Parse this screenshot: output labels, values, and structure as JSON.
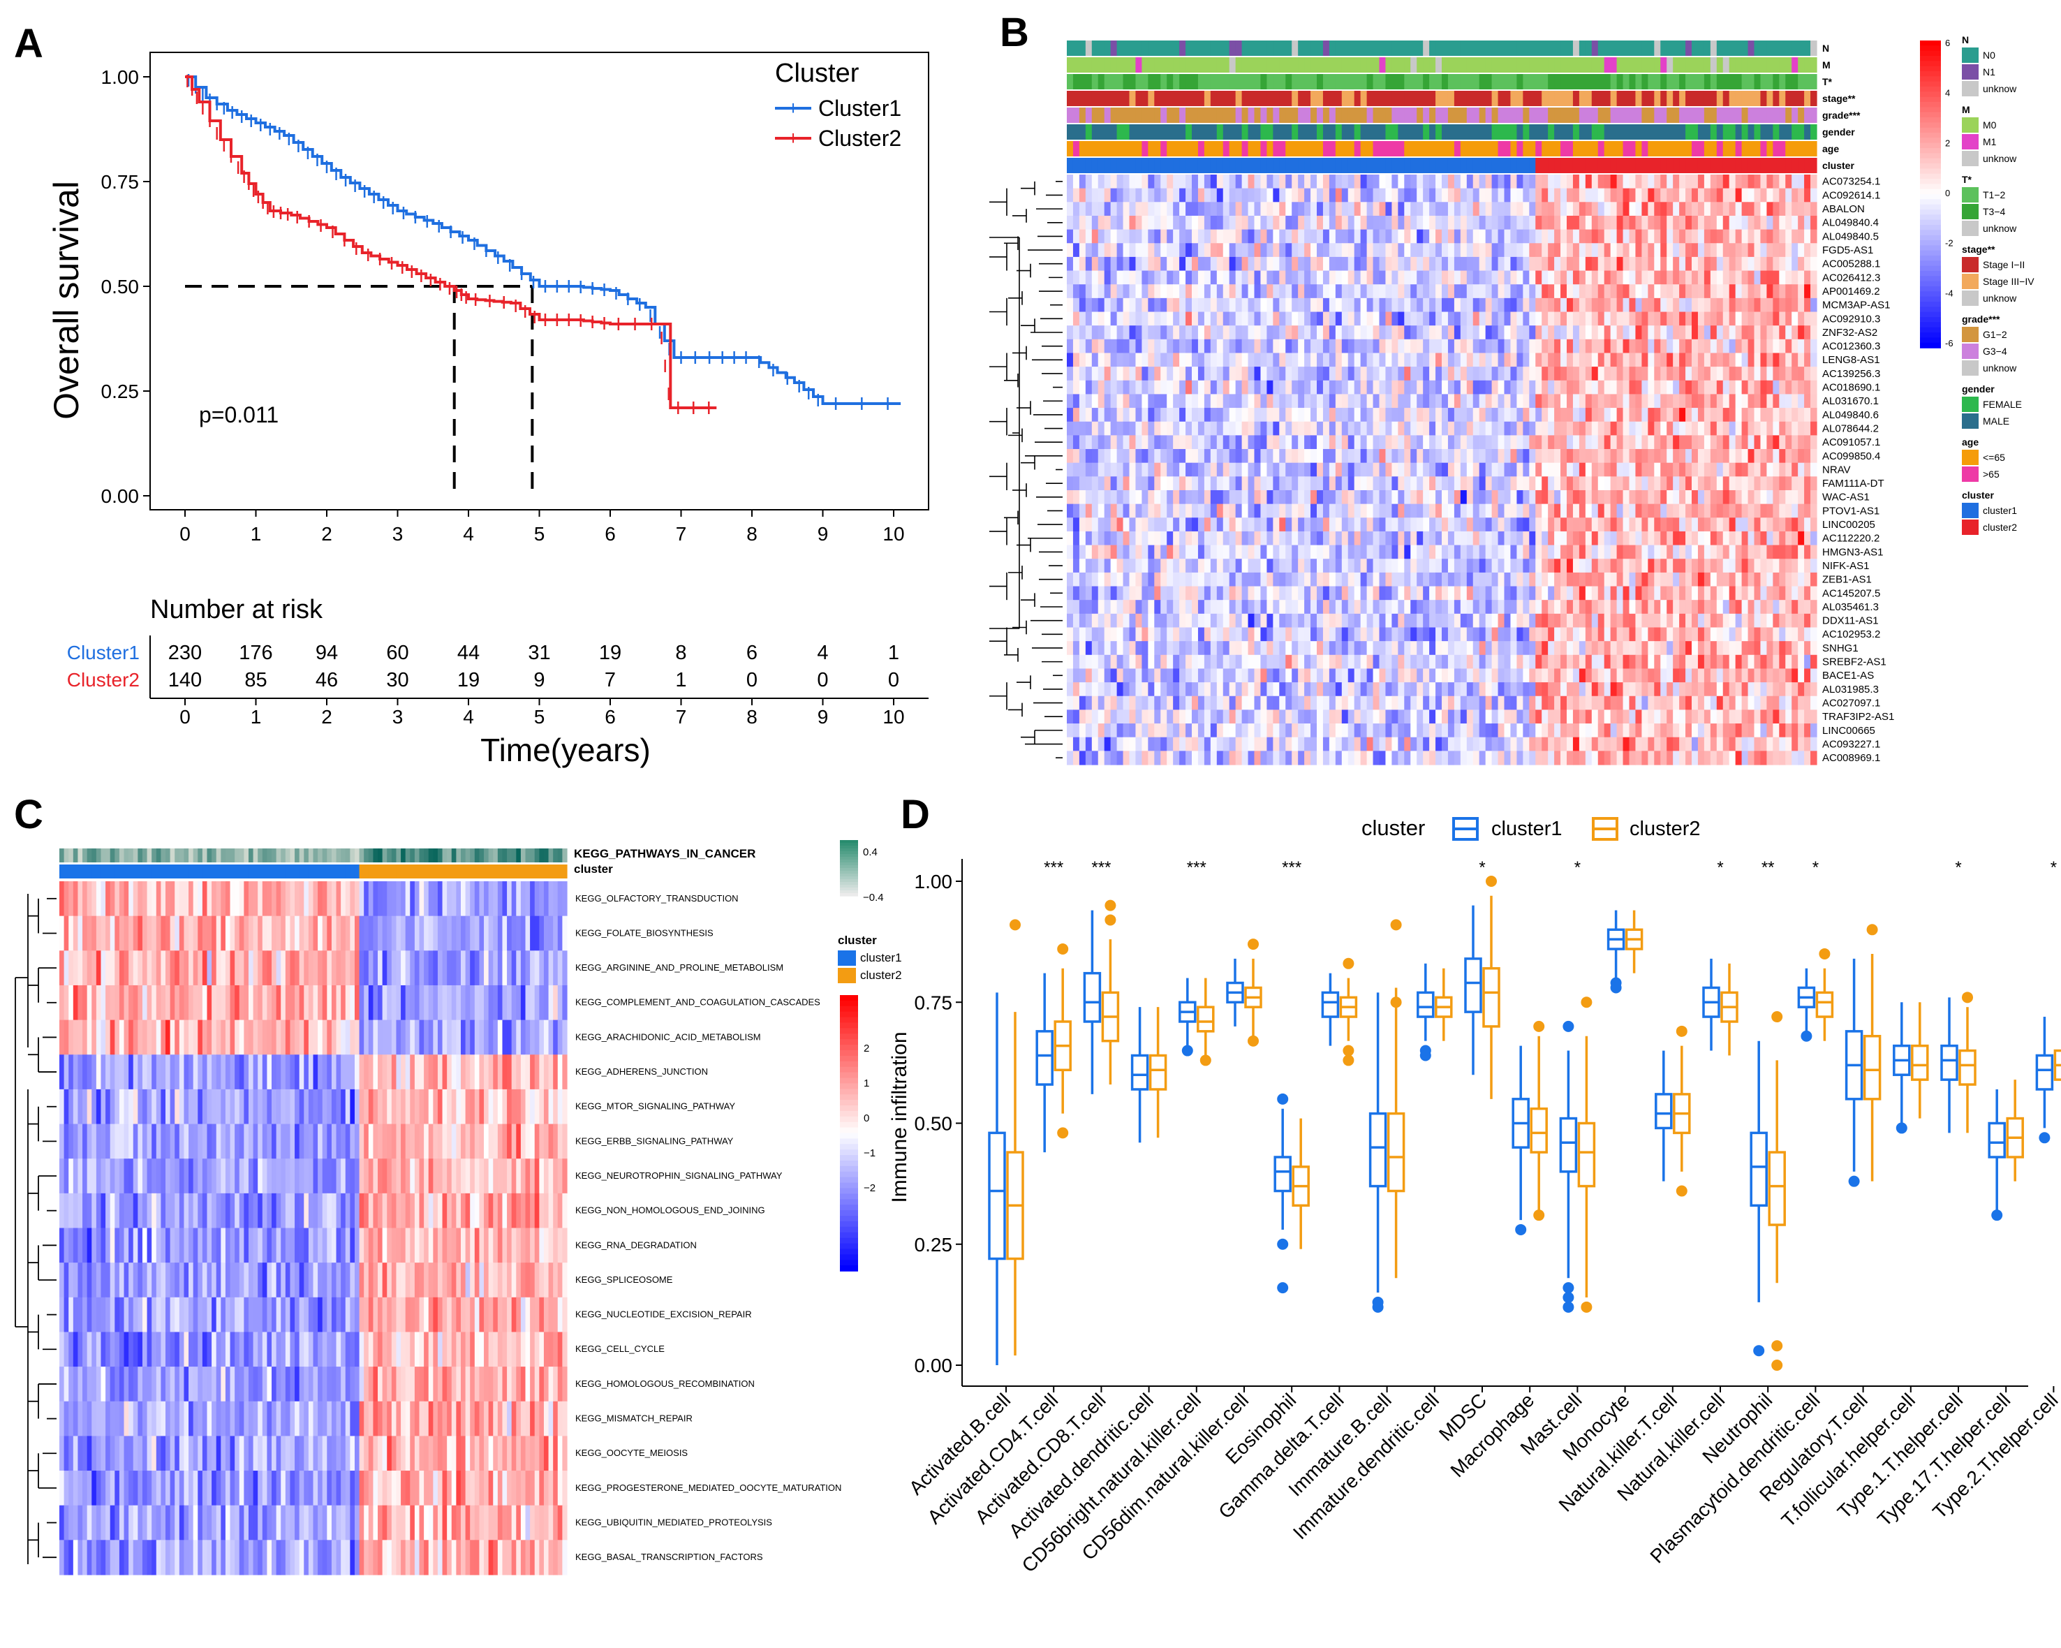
{
  "panel_labels": [
    "A",
    "B",
    "C",
    "D"
  ],
  "colors": {
    "cluster1": "#1f6fe0",
    "cluster2": "#e8232a",
    "cluster1_box": "#1a73e8",
    "cluster2_box": "#f39c12",
    "heat_low": "#0000e0",
    "heat_mid": "#ffffff",
    "heat_high": "#e00000"
  },
  "chart_data": [
    {
      "panel": "A",
      "type": "line",
      "subtype": "kaplan-meier",
      "title": "",
      "legend_title": "Cluster",
      "legend_position": "top-right",
      "xlabel": "Time(years)",
      "ylabel": "Overall survival",
      "xlim": [
        0,
        10
      ],
      "ylim": [
        0,
        1
      ],
      "xticks": [
        "0",
        "1",
        "2",
        "3",
        "4",
        "5",
        "6",
        "7",
        "8",
        "9",
        "10"
      ],
      "yticks": [
        "0.00",
        "0.25",
        "0.50",
        "0.75",
        "1.00"
      ],
      "annotation": "p=0.011",
      "median_survival": {
        "Cluster2": 3.8,
        "Cluster1": 4.9
      },
      "series": [
        {
          "name": "Cluster1",
          "x": [
            0,
            0.3,
            0.6,
            1.0,
            1.4,
            1.8,
            2.2,
            2.6,
            3.0,
            3.5,
            4.0,
            4.5,
            5.0,
            5.5,
            6.0,
            6.5,
            6.9,
            7.5,
            8.0,
            8.6,
            9.0,
            10.1
          ],
          "y": [
            1.0,
            0.95,
            0.92,
            0.89,
            0.86,
            0.81,
            0.76,
            0.72,
            0.68,
            0.65,
            0.61,
            0.56,
            0.5,
            0.5,
            0.49,
            0.45,
            0.33,
            0.33,
            0.33,
            0.27,
            0.22,
            0.22
          ]
        },
        {
          "name": "Cluster2",
          "x": [
            0,
            0.2,
            0.5,
            0.8,
            1.0,
            1.2,
            1.5,
            2.0,
            2.5,
            3.0,
            3.4,
            3.8,
            4.0,
            4.6,
            5.0,
            5.5,
            6.0,
            6.7,
            6.85,
            7.5
          ],
          "y": [
            1.0,
            0.94,
            0.85,
            0.77,
            0.72,
            0.68,
            0.67,
            0.64,
            0.58,
            0.55,
            0.52,
            0.49,
            0.47,
            0.46,
            0.42,
            0.42,
            0.41,
            0.41,
            0.21,
            0.21
          ]
        }
      ],
      "risk_table": {
        "title": "Number at risk",
        "rows": [
          {
            "name": "Cluster1",
            "values": [
              "230",
              "176",
              "94",
              "60",
              "44",
              "31",
              "19",
              "8",
              "6",
              "4",
              "1"
            ]
          },
          {
            "name": "Cluster2",
            "values": [
              "140",
              "85",
              "46",
              "30",
              "19",
              "9",
              "7",
              "1",
              "0",
              "0",
              "0"
            ]
          }
        ]
      }
    },
    {
      "panel": "B",
      "type": "heatmap",
      "annotation_tracks": [
        "N",
        "M",
        "T*",
        "stage**",
        "grade***",
        "gender",
        "age",
        "cluster"
      ],
      "genes": [
        "AC073254.1",
        "AC092614.1",
        "ABALON",
        "AL049840.4",
        "AL049840.5",
        "FGD5-AS1",
        "AC005288.1",
        "AC026412.3",
        "AP001469.2",
        "MCM3AP-AS1",
        "AC092910.3",
        "ZNF32-AS2",
        "AC012360.3",
        "LENG8-AS1",
        "AC139256.3",
        "AC018690.1",
        "AL031670.1",
        "AL049840.6",
        "AL078644.2",
        "AC091057.1",
        "AC099850.4",
        "NRAV",
        "FAM111A-DT",
        "WAC-AS1",
        "PTOV1-AS1",
        "LINC00205",
        "AC112220.2",
        "HMGN3-AS1",
        "NIFK-AS1",
        "ZEB1-AS1",
        "AC145207.5",
        "AL035461.3",
        "DDX11-AS1",
        "AC102953.2",
        "SNHG1",
        "SREBF2-AS1",
        "BACE1-AS",
        "AL031985.3",
        "AC027097.1",
        "TRAF3IP2-AS1",
        "LINC00665",
        "AC093227.1",
        "AC008969.1"
      ],
      "colorbar_ticks": [
        "6",
        "4",
        "2",
        "0",
        "-2",
        "-4",
        "-6"
      ],
      "legend": [
        {
          "title": "N",
          "items": [
            {
              "label": "N0",
              "color": "#2a9d8f"
            },
            {
              "label": "N1",
              "color": "#7b4fa6"
            },
            {
              "label": "unknow",
              "color": "#c8c8c8"
            }
          ]
        },
        {
          "title": "M",
          "items": [
            {
              "label": "M0",
              "color": "#9bd35a"
            },
            {
              "label": "M1",
              "color": "#e342c8"
            },
            {
              "label": "unknow",
              "color": "#c8c8c8"
            }
          ]
        },
        {
          "title": "T*",
          "items": [
            {
              "label": "T1−2",
              "color": "#5cc15c"
            },
            {
              "label": "T3−4",
              "color": "#36a536"
            },
            {
              "label": "unknow",
              "color": "#c8c8c8"
            }
          ]
        },
        {
          "title": "stage**",
          "items": [
            {
              "label": "Stage I−II",
              "color": "#c92a2a"
            },
            {
              "label": "Stage III−IV",
              "color": "#f2a95c"
            },
            {
              "label": "unknow",
              "color": "#c8c8c8"
            }
          ]
        },
        {
          "title": "grade***",
          "items": [
            {
              "label": "G1−2",
              "color": "#d3963f"
            },
            {
              "label": "G3−4",
              "color": "#cc80dd"
            },
            {
              "label": "unknow",
              "color": "#c8c8c8"
            }
          ]
        },
        {
          "title": "gender",
          "items": [
            {
              "label": "FEMALE",
              "color": "#2db84d"
            },
            {
              "label": "MALE",
              "color": "#2a6e8c"
            }
          ]
        },
        {
          "title": "age",
          "items": [
            {
              "label": "<=65",
              "color": "#f59c0a"
            },
            {
              "label": ">65",
              "color": "#ee3aa6"
            }
          ]
        },
        {
          "title": "cluster",
          "items": [
            {
              "label": "cluster1",
              "color": "#1f6fe0"
            },
            {
              "label": "cluster2",
              "color": "#e8232a"
            }
          ]
        }
      ]
    },
    {
      "panel": "C",
      "type": "heatmap",
      "annotation_tracks": [
        "KEGG_PATHWAYS_IN_CANCER",
        "cluster"
      ],
      "pathways": [
        "KEGG_OLFACTORY_TRANSDUCTION",
        "KEGG_FOLATE_BIOSYNTHESIS",
        "KEGG_ARGININE_AND_PROLINE_METABOLISM",
        "KEGG_COMPLEMENT_AND_COAGULATION_CASCADES",
        "KEGG_ARACHIDONIC_ACID_METABOLISM",
        "KEGG_ADHERENS_JUNCTION",
        "KEGG_MTOR_SIGNALING_PATHWAY",
        "KEGG_ERBB_SIGNALING_PATHWAY",
        "KEGG_NEUROTROPHIN_SIGNALING_PATHWAY",
        "KEGG_NON_HOMOLOGOUS_END_JOINING",
        "KEGG_RNA_DEGRADATION",
        "KEGG_SPLICEOSOME",
        "KEGG_NUCLEOTIDE_EXCISION_REPAIR",
        "KEGG_CELL_CYCLE",
        "KEGG_HOMOLOGOUS_RECOMBINATION",
        "KEGG_MISMATCH_REPAIR",
        "KEGG_OOCYTE_MEIOSIS",
        "KEGG_PROGESTERONE_MEDIATED_OOCYTE_MATURATION",
        "KEGG_UBIQUITIN_MEDIATED_PROTEOLYSIS",
        "KEGG_BASAL_TRANSCRIPTION_FACTORS"
      ],
      "top_scale_ticks": [
        "0.4",
        "−0.4"
      ],
      "colorbar_ticks": [
        "2",
        "1",
        "0",
        "−1",
        "−2"
      ],
      "legend": {
        "title": "cluster",
        "items": [
          {
            "label": "cluster1",
            "color": "#1a73e8"
          },
          {
            "label": "cluster2",
            "color": "#f39c12"
          }
        ]
      }
    },
    {
      "panel": "D",
      "type": "box",
      "legend_title": "cluster",
      "legend_position": "top",
      "ylabel": "Immune infiltration",
      "ylim": [
        0,
        1.05
      ],
      "yticks": [
        "0.00",
        "0.25",
        "0.50",
        "0.75",
        "1.00"
      ],
      "series_names": [
        "cluster1",
        "cluster2"
      ],
      "categories": [
        {
          "name": "Activated.B.cell",
          "sig": "",
          "c1": [
            0.0,
            0.22,
            0.36,
            0.48,
            0.77
          ],
          "c2": [
            0.02,
            0.22,
            0.33,
            0.44,
            0.73
          ],
          "out1": [],
          "out2": [
            0.91
          ]
        },
        {
          "name": "Activated.CD4.T.cell",
          "sig": "***",
          "c1": [
            0.44,
            0.58,
            0.64,
            0.69,
            0.81
          ],
          "c2": [
            0.52,
            0.61,
            0.66,
            0.71,
            0.82
          ],
          "out1": [],
          "out2": [
            0.86,
            0.48
          ]
        },
        {
          "name": "Activated.CD8.T.cell",
          "sig": "***",
          "c1": [
            0.56,
            0.71,
            0.75,
            0.81,
            0.94
          ],
          "c2": [
            0.58,
            0.67,
            0.72,
            0.77,
            0.88
          ],
          "out1": [],
          "out2": [
            0.92,
            0.95
          ]
        },
        {
          "name": "Activated.dendritic.cell",
          "sig": "",
          "c1": [
            0.46,
            0.57,
            0.6,
            0.64,
            0.74
          ],
          "c2": [
            0.47,
            0.57,
            0.61,
            0.64,
            0.74
          ],
          "out1": [],
          "out2": []
        },
        {
          "name": "CD56bright.natural.killer.cell",
          "sig": "***",
          "c1": [
            0.66,
            0.71,
            0.73,
            0.75,
            0.8
          ],
          "c2": [
            0.64,
            0.69,
            0.71,
            0.74,
            0.8
          ],
          "out1": [
            0.65
          ],
          "out2": [
            0.63
          ]
        },
        {
          "name": "CD56dim.natural.killer.cell",
          "sig": "",
          "c1": [
            0.7,
            0.75,
            0.77,
            0.79,
            0.84
          ],
          "c2": [
            0.68,
            0.74,
            0.76,
            0.78,
            0.84
          ],
          "out1": [],
          "out2": [
            0.87,
            0.67
          ]
        },
        {
          "name": "Eosinophil",
          "sig": "***",
          "c1": [
            0.28,
            0.36,
            0.4,
            0.43,
            0.53
          ],
          "c2": [
            0.24,
            0.33,
            0.37,
            0.41,
            0.51
          ],
          "out1": [
            0.25,
            0.16,
            0.55
          ],
          "out2": []
        },
        {
          "name": "Gamma.delta.T.cell",
          "sig": "",
          "c1": [
            0.66,
            0.72,
            0.75,
            0.77,
            0.81
          ],
          "c2": [
            0.67,
            0.72,
            0.74,
            0.76,
            0.8
          ],
          "out1": [],
          "out2": [
            0.83,
            0.65,
            0.63
          ]
        },
        {
          "name": "Immature.B.cell",
          "sig": "",
          "c1": [
            0.15,
            0.37,
            0.45,
            0.52,
            0.77
          ],
          "c2": [
            0.18,
            0.36,
            0.43,
            0.52,
            0.78
          ],
          "out1": [
            0.12,
            0.13
          ],
          "out2": [
            0.91,
            0.75
          ]
        },
        {
          "name": "Immature.dendritic.cell",
          "sig": "",
          "c1": [
            0.67,
            0.72,
            0.74,
            0.77,
            0.83
          ],
          "c2": [
            0.67,
            0.72,
            0.74,
            0.76,
            0.82
          ],
          "out1": [
            0.65,
            0.64
          ],
          "out2": []
        },
        {
          "name": "MDSC",
          "sig": "*",
          "c1": [
            0.6,
            0.73,
            0.79,
            0.84,
            0.95
          ],
          "c2": [
            0.55,
            0.7,
            0.77,
            0.82,
            0.97
          ],
          "out1": [],
          "out2": [
            1.0
          ]
        },
        {
          "name": "Macrophage",
          "sig": "",
          "c1": [
            0.3,
            0.45,
            0.5,
            0.55,
            0.66
          ],
          "c2": [
            0.32,
            0.44,
            0.48,
            0.53,
            0.68
          ],
          "out1": [
            0.28
          ],
          "out2": [
            0.7,
            0.31
          ]
        },
        {
          "name": "Mast.cell",
          "sig": "*",
          "c1": [
            0.18,
            0.4,
            0.46,
            0.51,
            0.65
          ],
          "c2": [
            0.14,
            0.37,
            0.44,
            0.5,
            0.68
          ],
          "out1": [
            0.16,
            0.14,
            0.12,
            0.7
          ],
          "out2": [
            0.75,
            0.12
          ]
        },
        {
          "name": "Monocyte",
          "sig": "",
          "c1": [
            0.8,
            0.86,
            0.88,
            0.9,
            0.94
          ],
          "c2": [
            0.81,
            0.86,
            0.88,
            0.9,
            0.94
          ],
          "out1": [
            0.79,
            0.78
          ],
          "out2": []
        },
        {
          "name": "Natural.killer.T.cell",
          "sig": "",
          "c1": [
            0.38,
            0.49,
            0.52,
            0.56,
            0.65
          ],
          "c2": [
            0.4,
            0.48,
            0.52,
            0.56,
            0.66
          ],
          "out1": [],
          "out2": [
            0.69,
            0.36
          ]
        },
        {
          "name": "Natural.killer.cell",
          "sig": "*",
          "c1": [
            0.65,
            0.72,
            0.75,
            0.78,
            0.84
          ],
          "c2": [
            0.64,
            0.71,
            0.74,
            0.77,
            0.83
          ],
          "out1": [],
          "out2": []
        },
        {
          "name": "Neutrophil",
          "sig": "**",
          "c1": [
            0.13,
            0.33,
            0.41,
            0.48,
            0.67
          ],
          "c2": [
            0.17,
            0.29,
            0.37,
            0.44,
            0.63
          ],
          "out1": [
            0.03
          ],
          "out2": [
            0.72,
            0.04,
            0.0
          ]
        },
        {
          "name": "Plasmacytoid.dendritic.cell",
          "sig": "*",
          "c1": [
            0.69,
            0.74,
            0.76,
            0.78,
            0.82
          ],
          "c2": [
            0.67,
            0.72,
            0.75,
            0.77,
            0.82
          ],
          "out1": [
            0.68
          ],
          "out2": [
            0.85
          ]
        },
        {
          "name": "Regulatory.T.cell",
          "sig": "",
          "c1": [
            0.4,
            0.55,
            0.62,
            0.69,
            0.84
          ],
          "c2": [
            0.38,
            0.55,
            0.61,
            0.68,
            0.85
          ],
          "out1": [
            0.38
          ],
          "out2": [
            0.9
          ]
        },
        {
          "name": "T.follicular.helper.cell",
          "sig": "",
          "c1": [
            0.5,
            0.6,
            0.63,
            0.66,
            0.75
          ],
          "c2": [
            0.51,
            0.59,
            0.62,
            0.66,
            0.75
          ],
          "out1": [
            0.49
          ],
          "out2": []
        },
        {
          "name": "Type.1.T.helper.cell",
          "sig": "*",
          "c1": [
            0.48,
            0.59,
            0.63,
            0.66,
            0.76
          ],
          "c2": [
            0.48,
            0.58,
            0.62,
            0.65,
            0.74
          ],
          "out1": [],
          "out2": [
            0.76
          ]
        },
        {
          "name": "Type.17.T.helper.cell",
          "sig": "",
          "c1": [
            0.32,
            0.43,
            0.46,
            0.5,
            0.57
          ],
          "c2": [
            0.38,
            0.43,
            0.47,
            0.51,
            0.59
          ],
          "out1": [
            0.31
          ],
          "out2": []
        },
        {
          "name": "Type.2.T.helper.cell",
          "sig": "*",
          "c1": [
            0.49,
            0.57,
            0.61,
            0.64,
            0.72
          ],
          "c2": [
            0.52,
            0.59,
            0.62,
            0.65,
            0.75
          ],
          "out1": [
            0.47
          ],
          "out2": []
        }
      ]
    }
  ]
}
